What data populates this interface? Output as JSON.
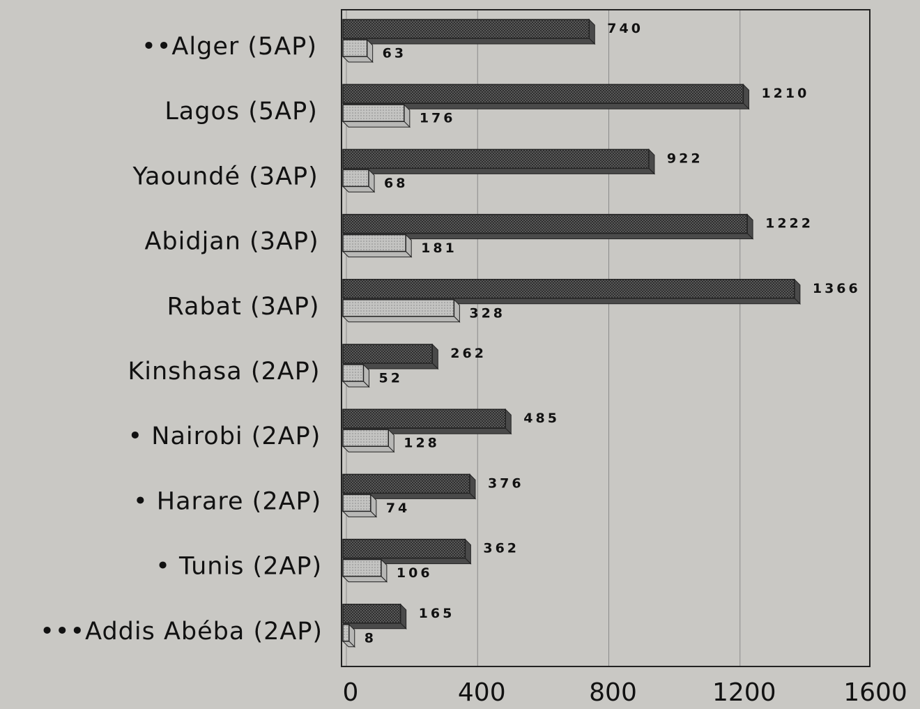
{
  "chart_data": {
    "type": "bar",
    "orientation": "horizontal",
    "categories": [
      "••Alger (5AP)",
      "Lagos (5AP)",
      "Yaoundé (3AP)",
      "Abidjan (3AP)",
      "Rabat (3AP)",
      "Kinshasa (2AP)",
      "• Nairobi (2AP)",
      "• Harare (2AP)",
      "• Tunis (2AP)",
      "•••Addis Abéba (2AP)"
    ],
    "series": [
      {
        "color": "#4a4a4a",
        "values": [
          740,
          1210,
          922,
          1222,
          1366,
          262,
          485,
          376,
          362,
          165
        ]
      },
      {
        "color": "#b8b8b6",
        "values": [
          63,
          176,
          68,
          181,
          328,
          52,
          128,
          74,
          106,
          8
        ]
      }
    ],
    "xlim": [
      0,
      1600
    ],
    "xticks": [
      0,
      400,
      800,
      1200,
      1600
    ],
    "grid": true
  }
}
